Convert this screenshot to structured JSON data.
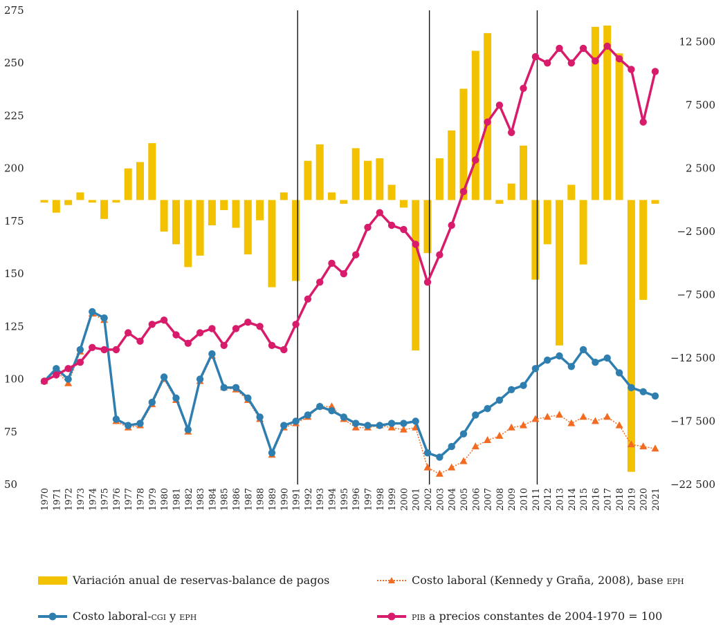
{
  "chart_data": {
    "type": "bar+line",
    "categories": [
      "1970",
      "1971",
      "1972",
      "1973",
      "1974",
      "1975",
      "1976",
      "1977",
      "1978",
      "1979",
      "1980",
      "1981",
      "1982",
      "1983",
      "1984",
      "1985",
      "1986",
      "1987",
      "1988",
      "1989",
      "1990",
      "1991",
      "1992",
      "1993",
      "1994",
      "1995",
      "1996",
      "1997",
      "1998",
      "1999",
      "2000",
      "2001",
      "2002",
      "2003",
      "2004",
      "2005",
      "2006",
      "2007",
      "2008",
      "2009",
      "2010",
      "2011",
      "2012",
      "2013",
      "2014",
      "2015",
      "2016",
      "2017",
      "2018",
      "2019",
      "2020",
      "2021"
    ],
    "left_axis": {
      "ylim": [
        50,
        275
      ],
      "ticks": [
        "50",
        "75",
        "100",
        "125",
        "150",
        "175",
        "200",
        "225",
        "250",
        "275"
      ]
    },
    "right_axis": {
      "ylim": [
        -22500,
        15000
      ],
      "ticks": [
        "-22 500",
        "-17 500",
        "-12 500",
        "-7 500",
        "-2 500",
        "2 500",
        "7 500",
        "12 500"
      ],
      "tick_values": [
        -22500,
        -17500,
        -12500,
        -7500,
        -2500,
        2500,
        7500,
        12500
      ]
    },
    "vertical_lines_at": [
      "1991",
      "2002",
      "2011"
    ],
    "series": [
      {
        "name": "Variación anual de reservas-balance de pagos",
        "kind": "bar",
        "axis": "right",
        "color": "#F2C200",
        "values": [
          -200,
          -1000,
          -400,
          600,
          -200,
          -1500,
          -200,
          2500,
          3000,
          4500,
          -2500,
          -3500,
          -5300,
          -4400,
          -2000,
          -800,
          -2200,
          -4300,
          -1600,
          -6900,
          600,
          -6400,
          3100,
          4400,
          600,
          -300,
          4100,
          3100,
          3300,
          1200,
          -600,
          -11900,
          -4200,
          3300,
          5500,
          8800,
          11800,
          13200,
          -300,
          1300,
          4300,
          -6300,
          -3500,
          -11500,
          1200,
          -5100,
          13700,
          13800,
          11600,
          -21500,
          -7900,
          -300
        ]
      },
      {
        "name": "Costo laboral (Kennedy y Graña, 2008), base EPH",
        "kind": "line",
        "axis": "left",
        "color": "#F26B21",
        "dashed": true,
        "marker": "triangle",
        "values": [
          99,
          104,
          98,
          113,
          131,
          128,
          80,
          77,
          78,
          88,
          100,
          90,
          75,
          99,
          111,
          96,
          95,
          90,
          81,
          64,
          77,
          79,
          82,
          87,
          87,
          81,
          77,
          77,
          78,
          77,
          76,
          77,
          58,
          55,
          58,
          61,
          68,
          71,
          73,
          77,
          78,
          81,
          82,
          83,
          79,
          82,
          80,
          82,
          78,
          69,
          68,
          67
        ]
      },
      {
        "name": "Costo laboral-CGI y EPH",
        "kind": "line",
        "axis": "left",
        "color": "#2E7EB0",
        "marker": "circle",
        "values": [
          99,
          105,
          100,
          114,
          132,
          129,
          81,
          78,
          79,
          89,
          101,
          91,
          76,
          100,
          112,
          96,
          96,
          91,
          82,
          65,
          78,
          80,
          83,
          87,
          85,
          82,
          79,
          78,
          78,
          79,
          79,
          80,
          65,
          63,
          68,
          74,
          83,
          86,
          90,
          95,
          97,
          105,
          109,
          111,
          106,
          114,
          108,
          110,
          103,
          96,
          94,
          92
        ]
      },
      {
        "name": "PIB a precios constantes de 2004-1970=100",
        "kind": "line",
        "axis": "left",
        "color": "#D81B6A",
        "marker": "circle",
        "values": [
          99,
          102,
          105,
          108,
          115,
          114,
          114,
          122,
          118,
          126,
          128,
          121,
          117,
          122,
          124,
          116,
          124,
          127,
          125,
          116,
          114,
          126,
          138,
          146,
          155,
          150,
          159,
          172,
          179,
          173,
          171,
          164,
          146,
          159,
          173,
          189,
          204,
          222,
          230,
          217,
          238,
          253,
          250,
          257,
          250,
          257,
          251,
          258,
          252,
          247,
          222,
          246
        ]
      }
    ]
  },
  "legend": {
    "items": [
      {
        "key": "reserves",
        "label": "Variación anual de reservas-balance de pagos"
      },
      {
        "key": "kennedy",
        "label_main": "Costo laboral (Kennedy y Graña, 2008), base ",
        "label_sc": "eph"
      },
      {
        "key": "cgi",
        "label_main": "Costo laboral-",
        "label_sc1": "cgi",
        "label_mid": " y ",
        "label_sc2": "eph"
      },
      {
        "key": "pib",
        "label_sc": "pib",
        "label_main": " a precios constantes de 2004-1970 = 100"
      }
    ]
  }
}
